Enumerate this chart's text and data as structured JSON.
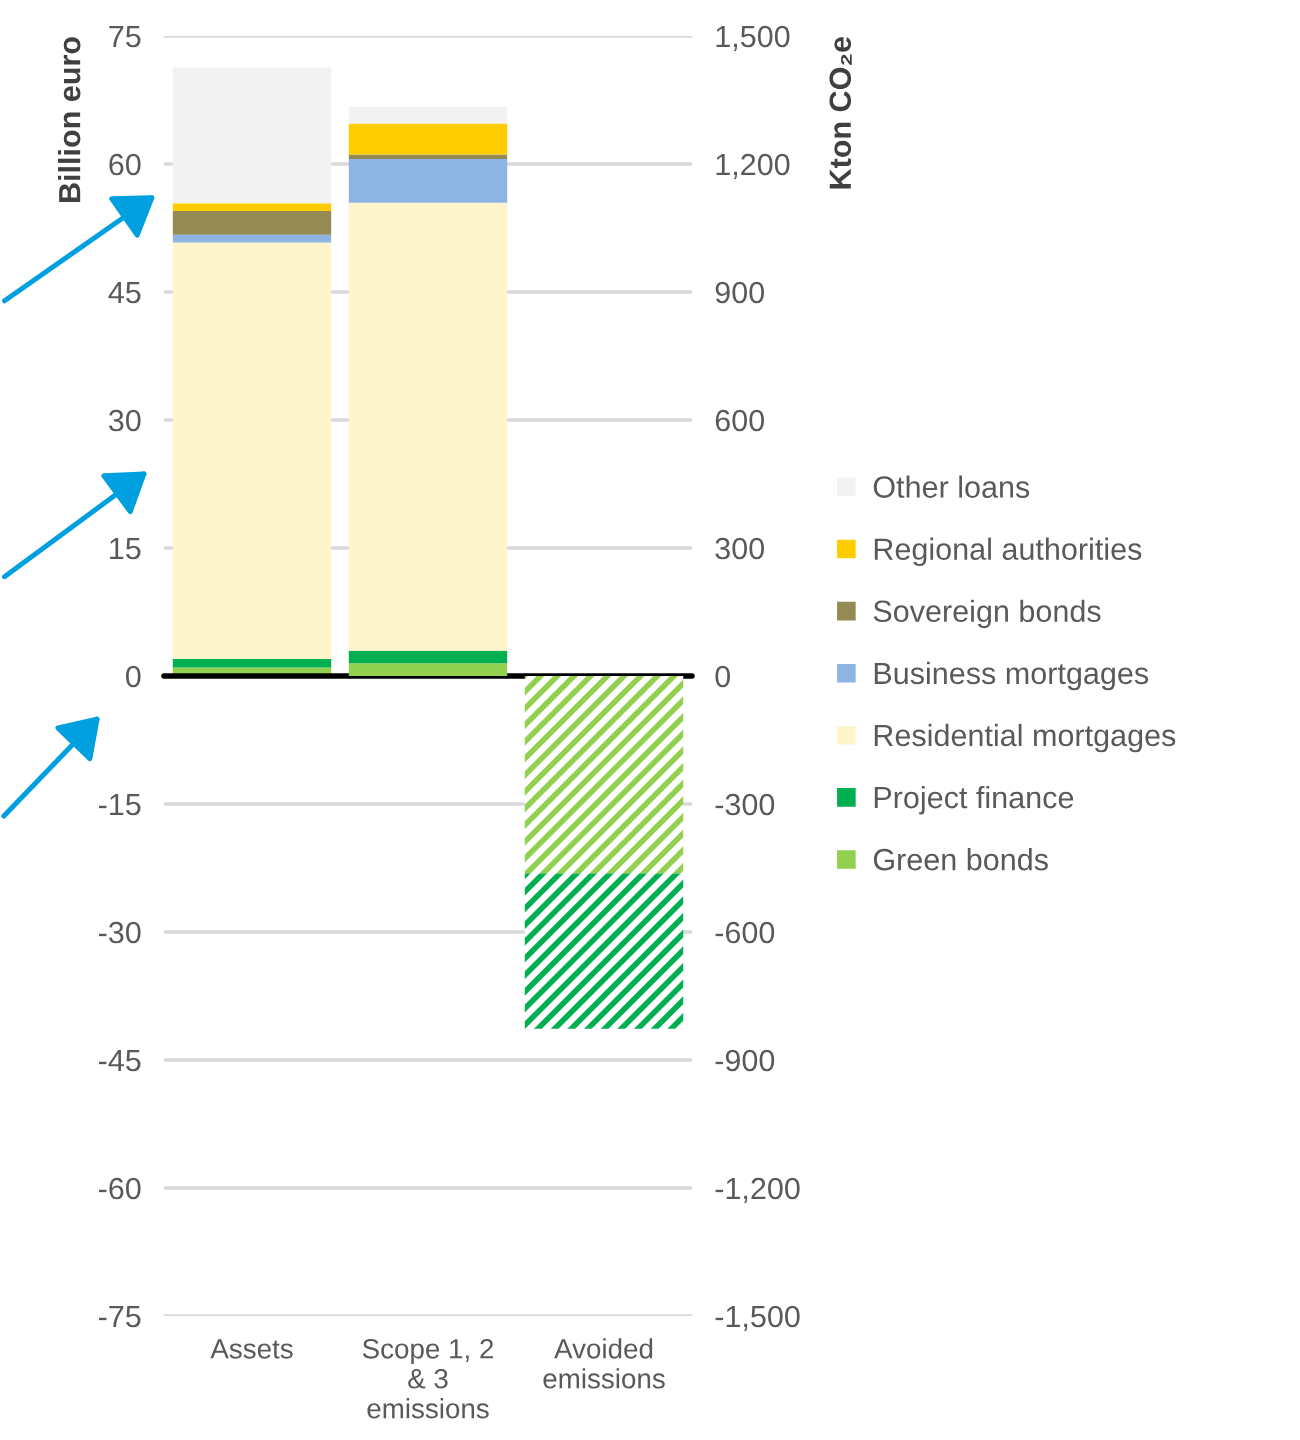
{
  "chart_data": {
    "type": "bar",
    "stacked": true,
    "categories": [
      "Assets",
      "Scope 1, 2\n& 3\nemissions",
      "Avoided\nemissions"
    ],
    "ylabel": "Billion euro",
    "y2label": "Kton CO₂e",
    "ylim": [
      -75,
      75
    ],
    "yticks": [
      -75,
      -60,
      -45,
      -30,
      -15,
      0,
      15,
      30,
      45,
      60,
      75
    ],
    "y2lim": [
      -1500,
      1500
    ],
    "y2ticks": [
      {
        "value": -1500,
        "label": "-1,500"
      },
      {
        "value": -1200,
        "label": "-1,200"
      },
      -900,
      -600,
      -300,
      0,
      300,
      600,
      900,
      {
        "value": 1200,
        "label": "1,200"
      },
      {
        "value": 1500,
        "label": "1,500"
      }
    ],
    "grid": "y",
    "legend": "right",
    "ref_lines": [
      {
        "axis": "y",
        "value": 0,
        "color": "#000000"
      }
    ],
    "series": [
      {
        "name": "Green bonds",
        "color": "#92d050",
        "values": [
          1.0,
          null,
          null
        ]
      },
      {
        "name": "Project finance",
        "color": "#00b050",
        "values": [
          1.0,
          null,
          null
        ]
      },
      {
        "name": "Residential mortgages",
        "color": "#fff5cc",
        "values": [
          48.8,
          null,
          null
        ]
      },
      {
        "name": "Business mortgages",
        "color": "#8eb4e3",
        "values": [
          0.9,
          null,
          null
        ]
      },
      {
        "name": "Sovereign bonds",
        "color": "#948a54",
        "values": [
          2.8,
          null,
          null
        ]
      },
      {
        "name": "Regional authorities",
        "color": "#ffcc00",
        "values": [
          0.9,
          null,
          null
        ]
      },
      {
        "name": "Other loans",
        "color": "#f2f2f2",
        "values": [
          15.9,
          null,
          null
        ]
      },
      {
        "color": "#92d050",
        "axis": "y2",
        "values": [
          null,
          30,
          -463
        ]
      },
      {
        "color": "#00b050",
        "axis": "y2",
        "values": [
          null,
          29,
          -364
        ]
      },
      {
        "color": "#fff5cc",
        "axis": "y2",
        "values": [
          null,
          1050,
          null
        ]
      },
      {
        "color": "#8eb4e3",
        "axis": "y2",
        "values": [
          null,
          103,
          null
        ]
      },
      {
        "color": "#948a54",
        "axis": "y2",
        "values": [
          null,
          10,
          null
        ]
      },
      {
        "color": "#ffcc00",
        "axis": "y2",
        "values": [
          null,
          73,
          null
        ]
      },
      {
        "color": "#f2f2f2",
        "axis": "y2",
        "values": [
          null,
          39,
          null
        ]
      }
    ]
  }
}
